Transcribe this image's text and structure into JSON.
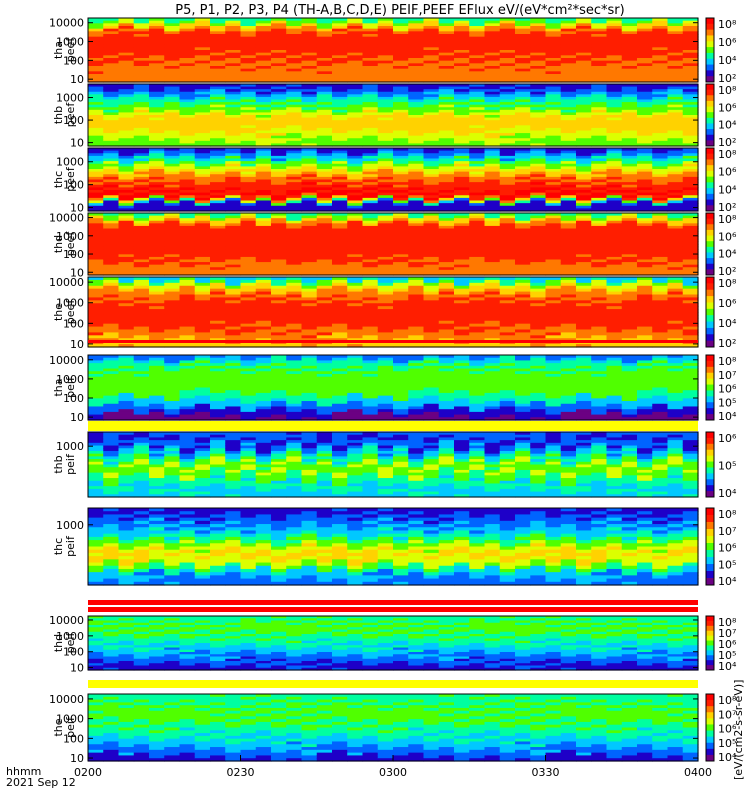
{
  "title": "P5, P1, P2, P3, P4 (TH-A,B,C,D,E) PEIF,PEEF EFlux eV/(eV*cm²*sec*sr)",
  "time_axis": {
    "label": "hhmm",
    "date": "2021 Sep 12",
    "ticks": [
      "0200",
      "0230",
      "0300",
      "0330",
      "0400"
    ]
  },
  "colorbar_label": "[eV/(cm2-s-sr-eV)]",
  "colormap": [
    "#6b0083",
    "#1e00c8",
    "#0064ff",
    "#00c8ff",
    "#00ffa0",
    "#50ff00",
    "#dcff00",
    "#ffd200",
    "#ff7800",
    "#ff1e00",
    "#ff0000"
  ],
  "chart_data": [
    {
      "type": "heatmap",
      "panel": "thb peef",
      "label": [
        "thb",
        "peef"
      ],
      "y_scale": "log",
      "y_ticks": [
        "1000",
        "100",
        "10"
      ],
      "colorbar_ticks": [
        "10⁸",
        "10⁶",
        "10⁴",
        "10²"
      ]
    },
    {
      "type": "heatmap",
      "panel": "thc peef",
      "label": [
        "thc",
        "peef"
      ],
      "y_scale": "log",
      "y_ticks": [
        "1000",
        "100",
        "10"
      ],
      "colorbar_ticks": [
        "10⁸",
        "10⁶",
        "10⁴",
        "10²"
      ]
    },
    {
      "type": "heatmap",
      "panel": "thd peef",
      "label": [
        "thd",
        "peef"
      ],
      "y_scale": "log",
      "y_ticks": [
        "10000",
        "1000",
        "100",
        "10"
      ],
      "colorbar_ticks": [
        "10⁸",
        "10⁶",
        "10⁴",
        "10²"
      ]
    },
    {
      "type": "heatmap",
      "panel": "the peef",
      "label": [
        "the",
        "peef"
      ],
      "y_scale": "log",
      "y_ticks": [
        "10000",
        "1000",
        "100",
        "10"
      ],
      "colorbar_ticks": [
        "10⁸",
        "10⁶",
        "10⁴",
        "10²"
      ]
    },
    {
      "type": "heatmap",
      "panel": "tha peif",
      "label": [
        "tha",
        "peif"
      ],
      "y_scale": "log",
      "y_ticks": [
        "10000",
        "1000",
        "100",
        "10"
      ],
      "colorbar_ticks": [
        "10⁸",
        "10⁷",
        "10⁶",
        "10⁵",
        "10⁴"
      ]
    },
    {
      "type": "heatmap",
      "panel": "thb peif",
      "label": [
        "thb",
        "peif"
      ],
      "y_scale": "log",
      "y_ticks": [
        "1000"
      ],
      "colorbar_ticks": [
        "10⁶",
        "10⁵",
        "10⁴"
      ]
    },
    {
      "type": "heatmap",
      "panel": "thc peif",
      "label": [
        "thc",
        "peif"
      ],
      "y_scale": "log",
      "y_ticks": [
        "1000"
      ],
      "colorbar_ticks": [
        "10⁸",
        "10⁷",
        "10⁶",
        "10⁵",
        "10⁴"
      ]
    },
    {
      "type": "heatmap",
      "panel": "thd peif",
      "label": [
        "thd",
        "peif"
      ],
      "y_scale": "log",
      "y_ticks": [
        "10000",
        "1000",
        "100",
        "10"
      ],
      "colorbar_ticks": [
        "10⁸",
        "10⁷",
        "10⁶",
        "10⁵",
        "10⁴"
      ]
    },
    {
      "type": "heatmap",
      "panel": "the peif",
      "label": [
        "the",
        "peif"
      ],
      "y_scale": "log",
      "y_ticks": [
        "10000",
        "1000",
        "100",
        "10"
      ],
      "colorbar_ticks": [
        "10⁸",
        "10⁷",
        "10⁶",
        "10⁵",
        "10⁴"
      ]
    }
  ]
}
